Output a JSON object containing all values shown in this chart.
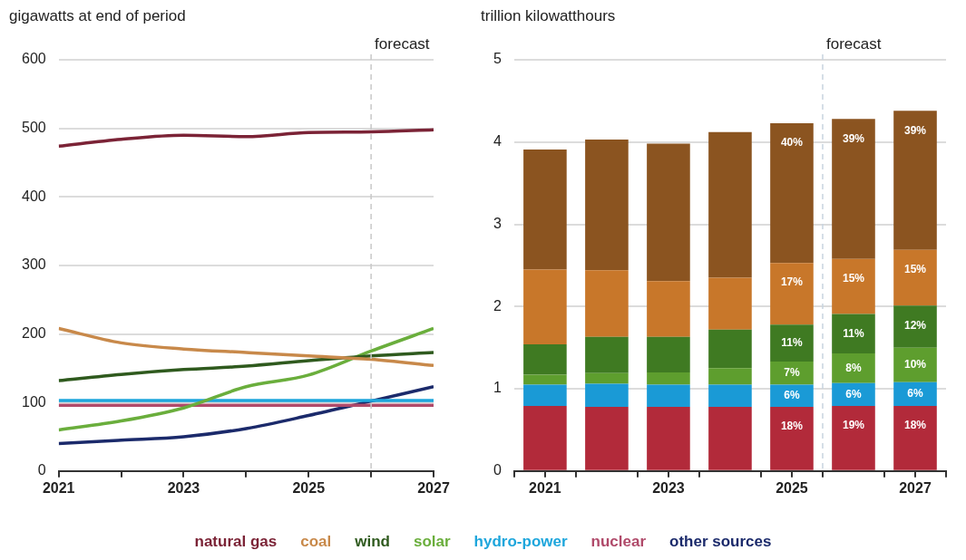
{
  "chart_data": [
    {
      "type": "line",
      "ylabel": "gigawatts at end of period",
      "x": [
        2021,
        2022,
        2023,
        2024,
        2025,
        2026,
        2027
      ],
      "series": [
        {
          "name": "natural gas",
          "color": "#7b2336",
          "values": [
            474,
            484,
            490,
            488,
            494,
            495,
            498
          ]
        },
        {
          "name": "coal",
          "color": "#c8894a",
          "values": [
            208,
            187,
            178,
            173,
            168,
            163,
            154
          ]
        },
        {
          "name": "wind",
          "color": "#2f5a1e",
          "values": [
            132,
            141,
            148,
            153,
            161,
            168,
            173
          ]
        },
        {
          "name": "solar",
          "color": "#6aae3c",
          "values": [
            60,
            73,
            92,
            123,
            140,
            175,
            208
          ]
        },
        {
          "name": "hydro-power",
          "color": "#1ea6dc",
          "values": [
            103,
            103,
            103,
            103,
            103,
            103,
            103
          ]
        },
        {
          "name": "nuclear",
          "color": "#b04a6a",
          "values": [
            96,
            96,
            96,
            96,
            96,
            96,
            96
          ]
        },
        {
          "name": "other sources",
          "color": "#1b2a6b",
          "values": [
            40,
            45,
            50,
            62,
            81,
            102,
            123
          ]
        }
      ],
      "xlim": [
        2021,
        2027
      ],
      "xticks": [
        2021,
        {
          "value": 2022,
          "label": null
        },
        2023,
        {
          "value": 2024,
          "label": null
        },
        2025,
        {
          "value": 2026,
          "label": null
        },
        2027
      ],
      "ylim": [
        0,
        600
      ],
      "yticks": [
        0,
        100,
        200,
        300,
        400,
        500,
        600
      ],
      "ref_lines": [
        {
          "axis": "x",
          "value": 2026,
          "label": "forecast",
          "color": "#c8c8c8",
          "line_style": "dashed"
        }
      ],
      "grid": "y",
      "legend": "bottom",
      "marker": "none",
      "line_style": "solid"
    },
    {
      "type": "bar",
      "ylabel": "trillion kilowatthours",
      "stacked": true,
      "x": [
        2021,
        2022,
        2023,
        2024,
        2025,
        2026,
        2027
      ],
      "series": [
        {
          "color": "#b22a3a",
          "values": [
            0.79,
            0.78,
            0.78,
            0.78,
            0.78,
            0.79,
            0.79
          ]
        },
        {
          "color": "#1a9ad6",
          "values": [
            0.26,
            0.28,
            0.27,
            0.27,
            0.27,
            0.28,
            0.29
          ]
        },
        {
          "color": "#5e9e2e",
          "values": [
            0.12,
            0.13,
            0.15,
            0.2,
            0.28,
            0.36,
            0.42
          ]
        },
        {
          "color": "#3f7a22",
          "values": [
            0.37,
            0.44,
            0.43,
            0.47,
            0.45,
            0.48,
            0.51
          ]
        },
        {
          "color": "#c8772a",
          "values": [
            0.91,
            0.81,
            0.68,
            0.63,
            0.75,
            0.67,
            0.68
          ]
        },
        {
          "color": "#8b5420",
          "values": [
            1.46,
            1.59,
            1.67,
            1.77,
            1.7,
            1.7,
            1.69
          ]
        }
      ],
      "xlim": [
        2020.5,
        2027.5
      ],
      "xticks": [
        {
          "value": 2020.5,
          "label": null
        },
        2021,
        {
          "value": 2021.5,
          "label": null
        },
        {
          "value": 2022.5,
          "label": null
        },
        2023,
        {
          "value": 2023.5,
          "label": null
        },
        {
          "value": 2024.5,
          "label": null
        },
        2025,
        {
          "value": 2025.5,
          "label": null
        },
        {
          "value": 2026.5,
          "label": null
        },
        2027,
        {
          "value": 2027.5,
          "label": null
        }
      ],
      "ylim": [
        0,
        5
      ],
      "yticks": [
        0,
        1,
        2,
        3,
        4,
        5
      ],
      "ref_lines": [
        {
          "axis": "x",
          "value": 2025.5,
          "label": "forecast",
          "color": "#c8d4e0",
          "line_style": "dashed"
        }
      ],
      "annotations": [
        {
          "text": "18%",
          "x": 2025,
          "y": 0.78
        },
        {
          "text": "19%",
          "x": 2026,
          "y": 0.79
        },
        {
          "text": "18%",
          "x": 2027,
          "y": 0.79
        },
        {
          "text": "6%",
          "x": 2025,
          "y": 1.05
        },
        {
          "text": "6%",
          "x": 2026,
          "y": 1.07
        },
        {
          "text": "6%",
          "x": 2027,
          "y": 1.08
        },
        {
          "text": "7%",
          "x": 2025,
          "y": 1.33
        },
        {
          "text": "8%",
          "x": 2026,
          "y": 1.43
        },
        {
          "text": "10%",
          "x": 2027,
          "y": 1.5
        },
        {
          "text": "11%",
          "x": 2025,
          "y": 1.78
        },
        {
          "text": "11%",
          "x": 2026,
          "y": 1.91
        },
        {
          "text": "12%",
          "x": 2027,
          "y": 2.01
        },
        {
          "text": "17%",
          "x": 2025,
          "y": 2.53
        },
        {
          "text": "15%",
          "x": 2026,
          "y": 2.58
        },
        {
          "text": "15%",
          "x": 2027,
          "y": 2.69
        },
        {
          "text": "40%",
          "x": 2025,
          "y": 4.23
        },
        {
          "text": "39%",
          "x": 2026,
          "y": 4.28
        },
        {
          "text": "39%",
          "x": 2027,
          "y": 4.38
        }
      ],
      "grid": "y"
    }
  ]
}
